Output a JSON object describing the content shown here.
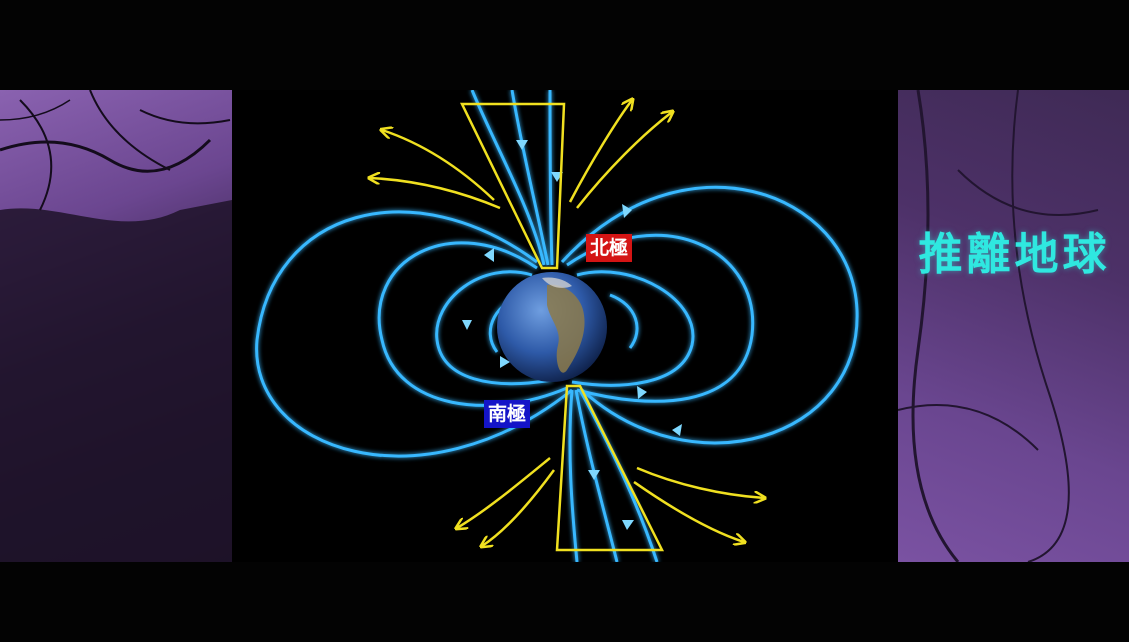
{
  "caption": "推離地球",
  "labels": {
    "north_pole": "北極",
    "south_pole": "南極"
  },
  "colors": {
    "field_lines": "#39b8ff",
    "solar_wind_arrows": "#f0e020",
    "caption": "#2fe8e0",
    "north_label_bg": "#d41414",
    "south_label_bg": "#1414c8"
  }
}
